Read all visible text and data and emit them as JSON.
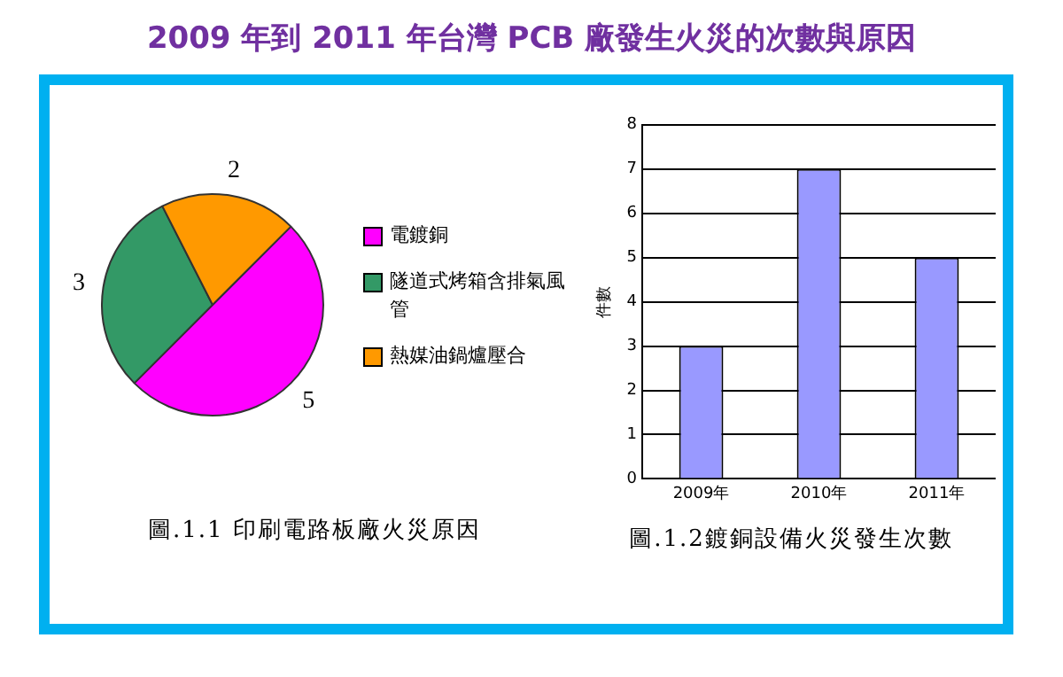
{
  "chart_data": [
    {
      "type": "pie",
      "title": "2009 年到 2011 年台灣 PCB 廠發生火災的次數與原因",
      "categories": [
        "電鍍銅",
        "隧道式烤箱含排氣風管",
        "熱媒油鍋爐壓合"
      ],
      "values": [
        5,
        3,
        2
      ],
      "colors": [
        "#ff00ff",
        "#339966",
        "#ff9900"
      ],
      "data_labels": true,
      "legend": "right",
      "annotations": [
        "圖.1.1 印刷電路板廠火災原因"
      ]
    },
    {
      "type": "bar",
      "categories": [
        "2009年",
        "2010年",
        "2011年"
      ],
      "values": [
        3,
        7,
        5
      ],
      "color": "#9999ff",
      "ylabel": "件數",
      "ylim": [
        0,
        8
      ],
      "yticks": [
        0,
        1,
        2,
        3,
        4,
        5,
        6,
        7,
        8
      ],
      "grid": "y",
      "annotations": [
        "圖.1.2鍍銅設備火災發生次數"
      ]
    }
  ]
}
